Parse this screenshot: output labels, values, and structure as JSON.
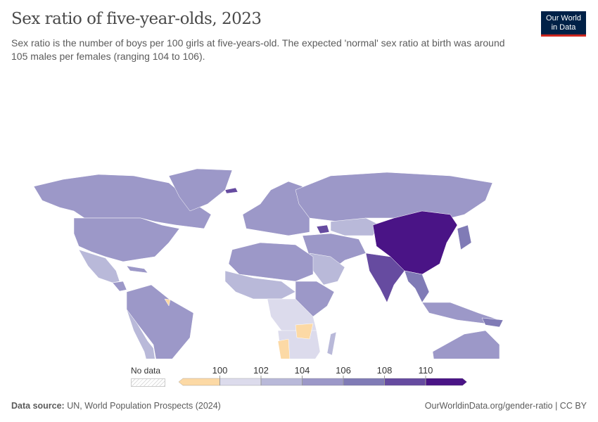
{
  "title": "Sex ratio of five-year-olds, 2023",
  "subtitle": "Sex ratio is the number of boys per 100 girls at five-years-old. The expected 'normal' sex ratio at birth was around 105 males per females (ranging 104 to 106).",
  "logo": {
    "line1": "Our World",
    "line2": "in Data"
  },
  "legend": {
    "no_data": "No data",
    "bins": [
      {
        "label": "",
        "color": "#fcd9a5"
      },
      {
        "label": "100",
        "color": "#dcdbec"
      },
      {
        "label": "102",
        "color": "#b9b9d9"
      },
      {
        "label": "104",
        "color": "#9c98c8"
      },
      {
        "label": "106",
        "color": "#807bb6"
      },
      {
        "label": "108",
        "color": "#664ba0"
      },
      {
        "label": "110",
        "color": "#4a1486"
      }
    ]
  },
  "footer": {
    "source_label": "Data source:",
    "source": "UN, World Population Prospects (2024)",
    "link": "OurWorldinData.org/gender-ratio | CC BY"
  }
}
